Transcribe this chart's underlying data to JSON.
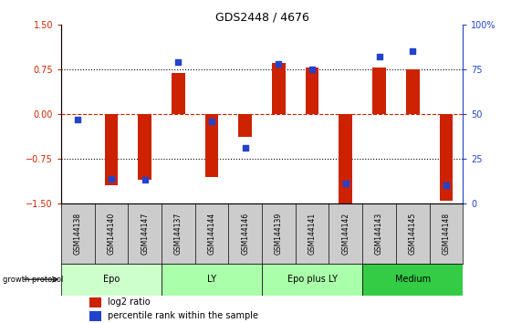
{
  "title": "GDS2448 / 4676",
  "samples": [
    "GSM144138",
    "GSM144140",
    "GSM144147",
    "GSM144137",
    "GSM144144",
    "GSM144146",
    "GSM144139",
    "GSM144141",
    "GSM144142",
    "GSM144143",
    "GSM144145",
    "GSM144148"
  ],
  "log2_ratio": [
    0.0,
    -1.2,
    -1.1,
    0.68,
    -1.05,
    -0.38,
    0.85,
    0.77,
    -1.55,
    0.77,
    0.75,
    -1.45
  ],
  "percentile_rank": [
    47,
    14,
    13,
    79,
    46,
    31,
    78,
    75,
    11,
    82,
    85,
    10
  ],
  "groups": [
    {
      "label": "Epo",
      "start": 0,
      "end": 3,
      "color": "#aaeebb"
    },
    {
      "label": "LY",
      "start": 3,
      "end": 6,
      "color": "#bbffbb"
    },
    {
      "label": "Epo plus LY",
      "start": 6,
      "end": 9,
      "color": "#bbffbb"
    },
    {
      "label": "Medium",
      "start": 9,
      "end": 12,
      "color": "#44cc55"
    }
  ],
  "ylim_left": [
    -1.5,
    1.5
  ],
  "ylim_right": [
    0,
    100
  ],
  "yticks_left": [
    -1.5,
    -0.75,
    0,
    0.75,
    1.5
  ],
  "yticks_right": [
    0,
    25,
    50,
    75,
    100
  ],
  "bar_color": "#cc2200",
  "dot_color": "#2244cc",
  "background_color": "#ffffff",
  "sample_bg_color": "#cccccc",
  "bar_width": 0.4
}
